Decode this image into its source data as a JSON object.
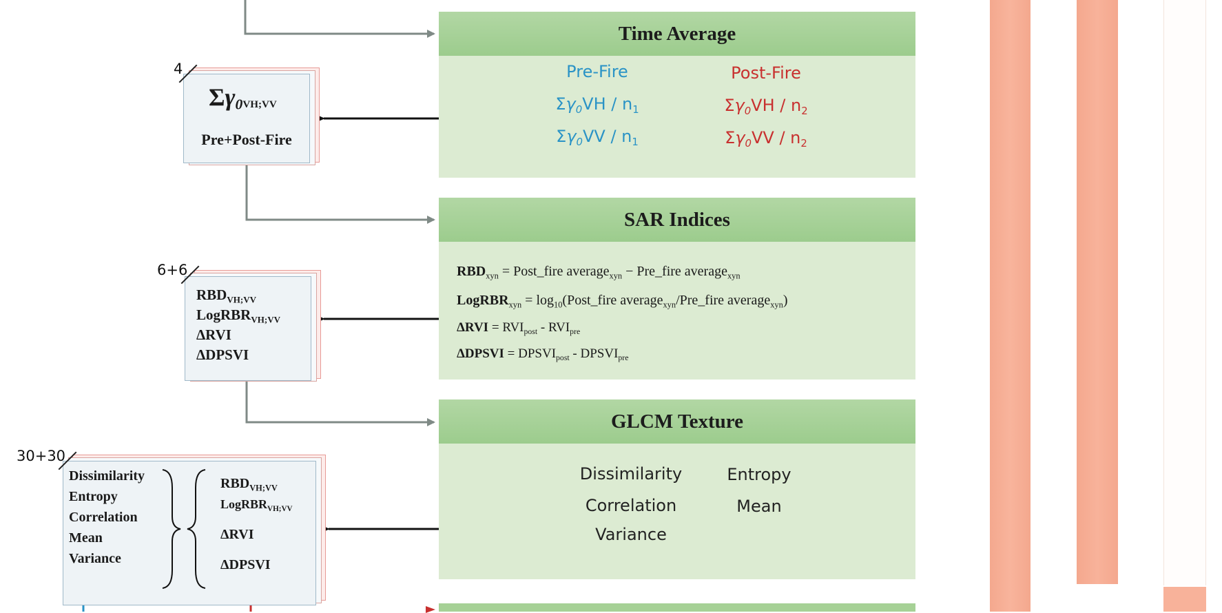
{
  "time_average": {
    "title": "Time Average",
    "pre_fire": {
      "label": "Pre-Fire",
      "vh": "VH / n",
      "vv": "VV / n",
      "n_sub": "1"
    },
    "post_fire": {
      "label": "Post-Fire",
      "vh": "VH / n",
      "vv": "VV / n",
      "n_sub": "2"
    }
  },
  "gamma_card": {
    "count": "4",
    "subscript": "VH;VV",
    "caption": "Pre+Post-Fire"
  },
  "sar_indices": {
    "title": "SAR Indices",
    "rbd": {
      "name": "RBD",
      "sub": "xyn",
      "equals": " =  ",
      "post": "Post_fire average",
      "post_sub": "xyn",
      "minus": " − ",
      "pre": "Pre_fire average",
      "pre_sub": "xyn"
    },
    "logrbr": {
      "name": "LogRBR",
      "sub": "xyn",
      "equals": " =  ",
      "log": "log",
      "log_sub": "10",
      "open": "(",
      "post": "Post_fire average",
      "post_sub": "xyn",
      "div": "/",
      "pre": "Pre_fire average",
      "pre_sub": "xyn",
      "close": ")"
    },
    "drvi": {
      "name": "ΔRVI",
      "equals": " = ",
      "a": "RVI",
      "a_sub": "post",
      "minus": " - ",
      "b": "RVI",
      "b_sub": "pre"
    },
    "ddpsvi": {
      "name": "ΔDPSVI",
      "equals": " = ",
      "a": "DPSVI",
      "a_sub": "post",
      "minus": " - ",
      "b": "DPSVI",
      "b_sub": "pre"
    }
  },
  "indices_card": {
    "count": "6+6",
    "rbd": "RBD",
    "rbd_sub": "VH;VV",
    "logrbr": "LogRBR",
    "logrbr_sub": "VH;VV",
    "drvi": "ΔRVI",
    "ddpsvi": "ΔDPSVI"
  },
  "glcm": {
    "title": "GLCM Texture",
    "dissimilarity": "Dissimilarity",
    "entropy": "Entropy",
    "correlation": "Correlation",
    "mean": "Mean",
    "variance": "Variance"
  },
  "texture_card": {
    "count": "30+30",
    "left": [
      "Dissimilarity",
      "Entropy",
      "Correlation",
      "Mean",
      "Variance"
    ],
    "rbd": "RBD",
    "rbd_sub": "VH;VV",
    "logrbr": "LogRBR",
    "logrbr_sub": "VH;VV",
    "drvi": "ΔRVI",
    "ddpsvi": "ΔDPSVI"
  },
  "colors": {
    "panel_head": "#a6d196",
    "panel_body": "#dcebd2",
    "pre_fire": "#2a93c6",
    "post_fire": "#c8302f",
    "bar": "#f7aa91"
  }
}
